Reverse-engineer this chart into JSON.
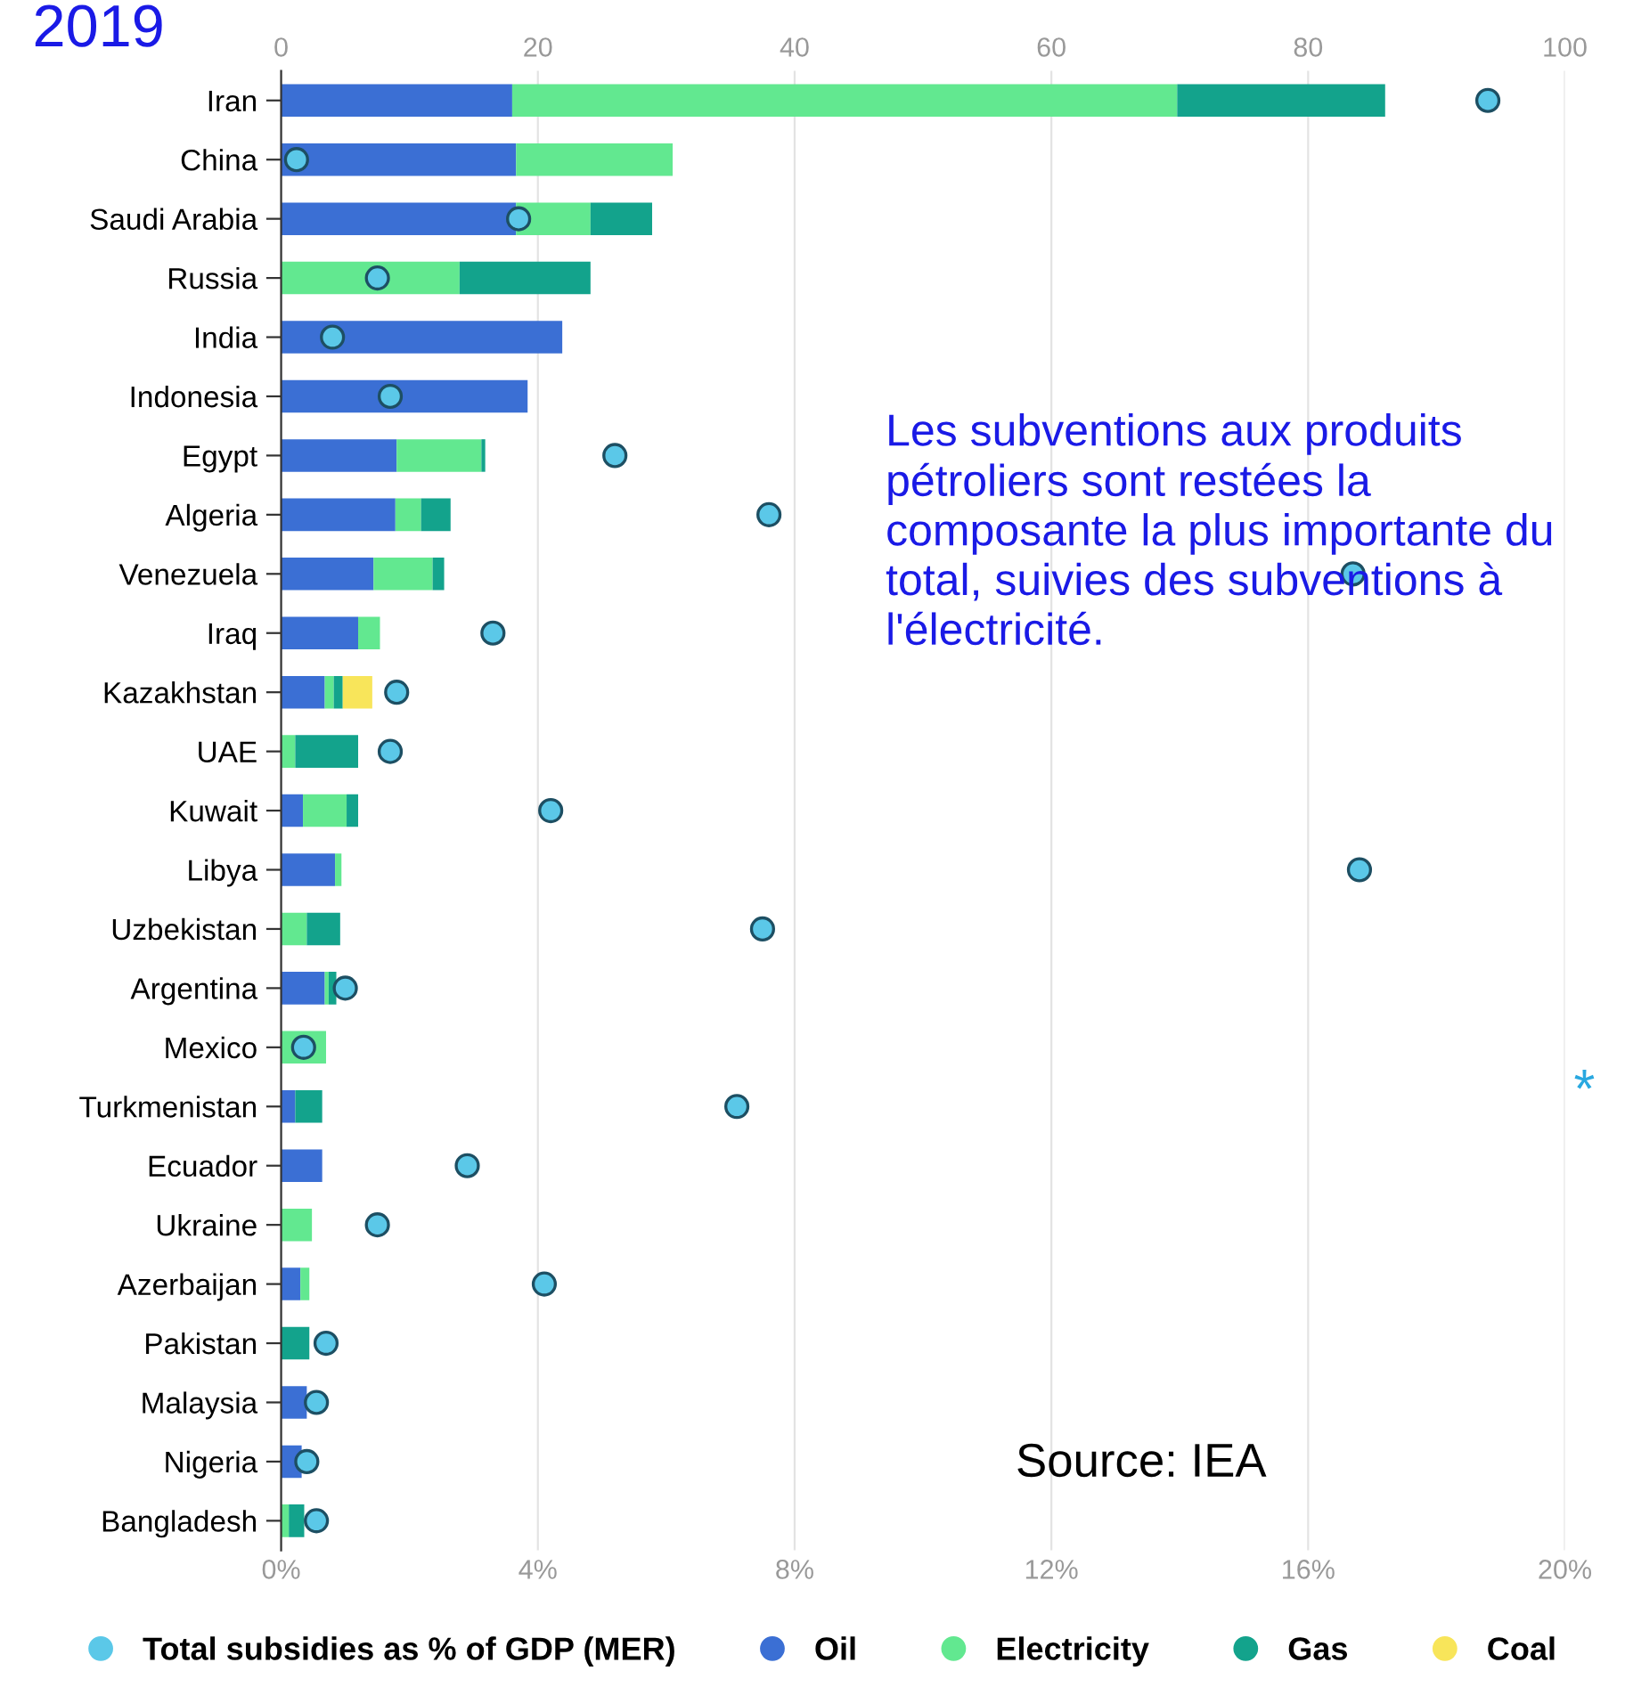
{
  "chart_data": {
    "type": "bar",
    "orientation": "horizontal",
    "stacked": true,
    "categories": [
      "Iran",
      "China",
      "Saudi Arabia",
      "Russia",
      "India",
      "Indonesia",
      "Egypt",
      "Algeria",
      "Venezuela",
      "Iraq",
      "Kazakhstan",
      "UAE",
      "Kuwait",
      "Libya",
      "Uzbekistan",
      "Argentina",
      "Mexico",
      "Turkmenistan",
      "Ecuador",
      "Ukraine",
      "Azerbaijan",
      "Pakistan",
      "Malaysia",
      "Nigeria",
      "Bangladesh"
    ],
    "series": [
      {
        "name": "Total subsidies as % of GDP (MER)",
        "type": "scatter",
        "axis": "x2",
        "color": "#5bc8e8",
        "values": [
          18.8,
          0.24,
          3.7,
          1.5,
          0.8,
          1.7,
          5.2,
          7.6,
          16.7,
          3.3,
          1.8,
          1.7,
          4.2,
          16.8,
          7.5,
          1.0,
          0.35,
          7.1,
          2.9,
          1.5,
          4.1,
          0.7,
          0.55,
          0.4,
          0.55
        ]
      },
      {
        "name": "Oil",
        "color": "#3b6fd4",
        "values": [
          18.0,
          18.3,
          18.3,
          0,
          21.9,
          19.2,
          9.0,
          8.9,
          7.2,
          6.0,
          3.4,
          0,
          1.7,
          4.2,
          0,
          3.4,
          0,
          1.1,
          3.2,
          0,
          1.5,
          0,
          2.0,
          1.6,
          0
        ]
      },
      {
        "name": "Electricity",
        "color": "#62e890",
        "values": [
          51.8,
          12.2,
          5.8,
          13.9,
          0,
          0,
          6.6,
          2.0,
          4.6,
          1.7,
          0.7,
          1.1,
          3.4,
          0.5,
          2.0,
          0.3,
          3.5,
          0,
          0,
          2.4,
          0.7,
          0,
          0,
          0,
          0.6
        ]
      },
      {
        "name": "Gas",
        "color": "#13a38c",
        "values": [
          16.2,
          0,
          4.8,
          10.2,
          0,
          0,
          0.3,
          2.3,
          0.9,
          0,
          0.7,
          4.9,
          0.9,
          0,
          2.6,
          0.6,
          0,
          2.1,
          0,
          0,
          0,
          2.2,
          0,
          0,
          1.2
        ]
      },
      {
        "name": "Coal",
        "color": "#f8e55a",
        "values": [
          0,
          0,
          0,
          0,
          0,
          0,
          0,
          0,
          0,
          0,
          2.3,
          0,
          0,
          0,
          0,
          0,
          0,
          0,
          0,
          0,
          0,
          0,
          0,
          0,
          0
        ]
      }
    ],
    "xlim": [
      0,
      100
    ],
    "xticks": [
      0,
      20,
      40,
      60,
      80,
      100
    ],
    "x2lim": [
      0,
      20
    ],
    "x2ticks": [
      {
        "value": 0,
        "label": "0%"
      },
      {
        "value": 4,
        "label": "4%"
      },
      {
        "value": 8,
        "label": "8%"
      },
      {
        "value": 12,
        "label": "12%"
      },
      {
        "value": 16,
        "label": "16%"
      },
      {
        "value": 20,
        "label": "20%"
      }
    ],
    "grid": "x",
    "legend": "bottom",
    "marker": "circle",
    "annotations": [
      "2019",
      "Les subventions aux produits pétroliers sont restées la composante la plus importante du total, suivies des subventions à l'électricité.",
      "*",
      "Source: IEA"
    ]
  }
}
